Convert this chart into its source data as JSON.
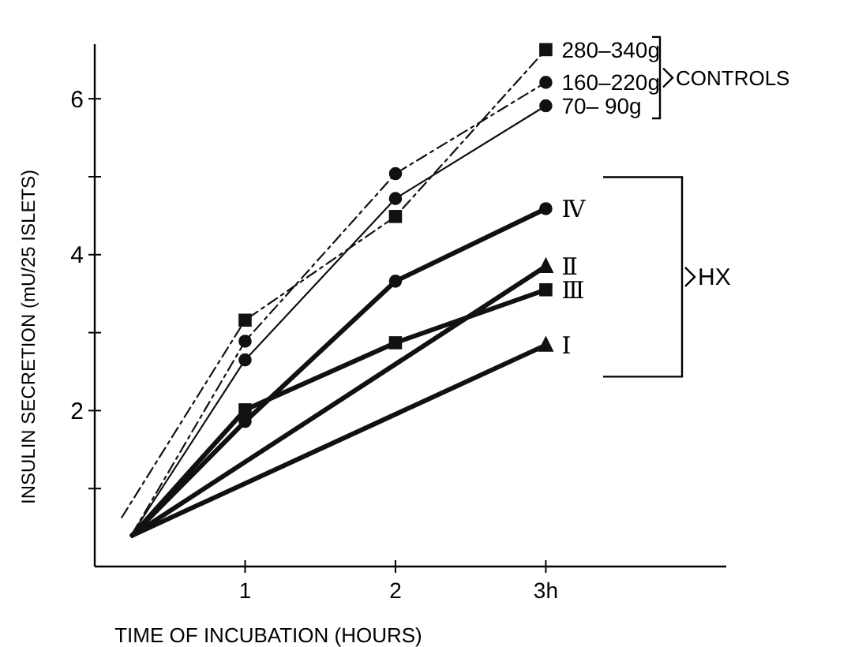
{
  "chart_data": {
    "type": "line",
    "xlabel": "TIME OF INCUBATION (HOURS)",
    "ylabel": "INSULIN SECRETION (mU/25 ISLETS)",
    "xlim": [
      0,
      4.2
    ],
    "ylim": [
      0,
      6.7
    ],
    "xticks": [
      1,
      2,
      {
        "value": 3,
        "label": "3h"
      }
    ],
    "yticks": [
      {
        "value": 1,
        "label": null
      },
      2,
      {
        "value": 3,
        "label": null
      },
      4,
      {
        "value": 5,
        "label": null
      },
      6
    ],
    "grid": false,
    "legend": "right",
    "series": [
      {
        "name": "280–340g",
        "color": "#111111",
        "x": [
          0.18,
          1,
          2,
          3
        ],
        "values": [
          0.63,
          3.16,
          4.49,
          6.63
        ],
        "marker": "square",
        "line_style": "dashed"
      },
      {
        "name": "160–220g",
        "color": "#111111",
        "x": [
          0.25,
          1,
          2,
          3
        ],
        "values": [
          0.42,
          2.89,
          5.04,
          6.21
        ],
        "marker": "circle",
        "line_style": "dashed"
      },
      {
        "name": "70– 90g",
        "color": "#111111",
        "x": [
          0.25,
          1,
          2,
          3
        ],
        "values": [
          0.42,
          2.65,
          4.72,
          5.91
        ],
        "marker": "circle",
        "line_style": "solid"
      },
      {
        "name": "Ⅳ",
        "color": "#111111",
        "x": [
          0.25,
          1,
          2,
          3
        ],
        "values": [
          0.4,
          1.86,
          3.66,
          4.59
        ],
        "marker": "circle",
        "line_style": "solid"
      },
      {
        "name": "Ⅱ",
        "color": "#111111",
        "x": [
          0.25,
          3
        ],
        "values": [
          0.4,
          3.85
        ],
        "marker": "triangle",
        "line_style": "solid"
      },
      {
        "name": "Ⅲ",
        "color": "#111111",
        "x": [
          0.25,
          1,
          2,
          3
        ],
        "values": [
          0.4,
          2.01,
          2.87,
          3.55
        ],
        "marker": "square",
        "line_style": "solid"
      },
      {
        "name": "Ⅰ",
        "color": "#111111",
        "x": [
          0.25,
          3
        ],
        "values": [
          0.4,
          2.84
        ],
        "marker": "triangle",
        "line_style": "solid"
      }
    ],
    "annotations": [
      "CONTROLS",
      "HX"
    ]
  }
}
